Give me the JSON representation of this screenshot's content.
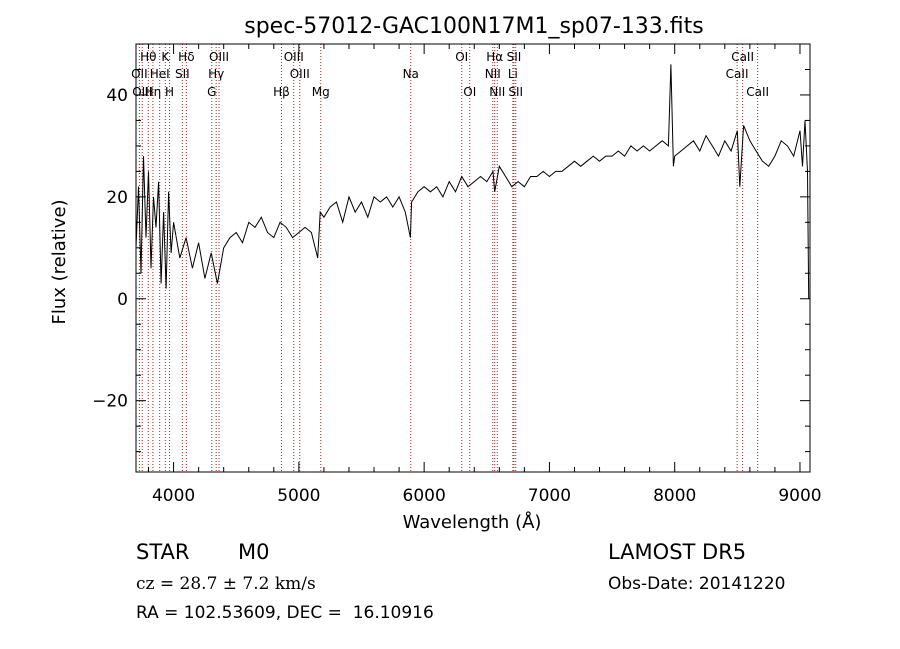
{
  "chart_data": {
    "type": "line",
    "title": "spec-57012-GAC100N17M1_sp07-133.fits",
    "xlabel": "Wavelength (Å)",
    "ylabel": "Flux (relative)",
    "xlim": [
      3700,
      9080
    ],
    "ylim": [
      -34,
      50
    ],
    "x_ticks": [
      4000,
      5000,
      6000,
      7000,
      8000,
      9000
    ],
    "y_ticks": [
      -20,
      0,
      20,
      40
    ],
    "grid": false,
    "series": [
      {
        "x": [
          3700,
          3720,
          3740,
          3760,
          3780,
          3800,
          3820,
          3840,
          3860,
          3880,
          3900,
          3920,
          3940,
          3960,
          3980,
          4000,
          4050,
          4100,
          4150,
          4200,
          4250,
          4300,
          4350,
          4400,
          4450,
          4500,
          4550,
          4600,
          4650,
          4700,
          4750,
          4800,
          4850,
          4900,
          4950,
          5000,
          5050,
          5100,
          5150,
          5170,
          5200,
          5250,
          5300,
          5350,
          5400,
          5450,
          5500,
          5550,
          5600,
          5650,
          5700,
          5750,
          5800,
          5850,
          5890,
          5900,
          5950,
          6000,
          6050,
          6100,
          6150,
          6200,
          6250,
          6300,
          6350,
          6400,
          6450,
          6500,
          6550,
          6563,
          6600,
          6650,
          6700,
          6750,
          6800,
          6850,
          6900,
          6950,
          7000,
          7050,
          7100,
          7150,
          7200,
          7250,
          7300,
          7350,
          7400,
          7450,
          7500,
          7550,
          7600,
          7650,
          7700,
          7750,
          7800,
          7850,
          7900,
          7950,
          7970,
          7990,
          8000,
          8050,
          8100,
          8150,
          8200,
          8250,
          8300,
          8350,
          8400,
          8450,
          8500,
          8520,
          8550,
          8600,
          8650,
          8700,
          8750,
          8800,
          8850,
          8900,
          8950,
          9000,
          9020,
          9040,
          9060,
          9070
        ],
        "y": [
          10,
          22,
          5,
          28,
          12,
          25,
          6,
          20,
          14,
          23,
          3,
          17,
          2,
          21,
          9,
          15,
          8,
          12,
          6,
          11,
          4,
          9,
          3,
          10,
          12,
          13,
          11,
          15,
          14,
          16,
          13,
          12,
          15,
          14,
          12,
          13,
          14,
          13,
          8,
          17,
          16,
          18,
          19,
          15,
          20,
          17,
          19,
          16,
          20,
          19,
          20,
          18,
          20,
          17,
          12,
          19,
          21,
          22,
          21,
          22,
          20,
          23,
          21,
          24,
          22,
          23,
          24,
          23,
          25,
          21,
          26,
          24,
          22,
          23,
          22,
          24,
          24,
          25,
          24,
          25,
          25,
          26,
          27,
          26,
          27,
          28,
          27,
          28,
          28,
          29,
          28,
          30,
          29,
          30,
          29,
          30,
          31,
          30,
          46,
          26,
          28,
          29,
          30,
          31,
          29,
          32,
          30,
          28,
          31,
          29,
          33,
          22,
          34,
          31,
          29,
          27,
          26,
          28,
          31,
          30,
          28,
          33,
          26,
          35,
          25,
          0
        ]
      }
    ],
    "lines": [
      {
        "label": "Hθ",
        "x": 3798,
        "row": 1
      },
      {
        "label": "OII",
        "x": 3727,
        "row": 2
      },
      {
        "label": "OIII",
        "x": 3750,
        "row": 3
      },
      {
        "label": "Hη",
        "x": 3835,
        "row": 3
      },
      {
        "label": "K",
        "x": 3934,
        "row": 1
      },
      {
        "label": "HeI",
        "x": 3889,
        "row": 2
      },
      {
        "label": "H",
        "x": 3968,
        "row": 3
      },
      {
        "label": "SII",
        "x": 4070,
        "row": 2
      },
      {
        "label": "Hδ",
        "x": 4102,
        "row": 1
      },
      {
        "label": "OIII",
        "x": 4363,
        "row": 1
      },
      {
        "label": "Hγ",
        "x": 4340,
        "row": 2
      },
      {
        "label": "G",
        "x": 4305,
        "row": 3
      },
      {
        "label": "Hβ",
        "x": 4861,
        "row": 3
      },
      {
        "label": "OIII",
        "x": 4959,
        "row": 1
      },
      {
        "label": "OIII",
        "x": 5007,
        "row": 2
      },
      {
        "label": "Mg",
        "x": 5175,
        "row": 3
      },
      {
        "label": "Na",
        "x": 5893,
        "row": 2
      },
      {
        "label": "OI",
        "x": 6300,
        "row": 1
      },
      {
        "label": "OI",
        "x": 6364,
        "row": 3
      },
      {
        "label": "Hα",
        "x": 6563,
        "row": 1
      },
      {
        "label": "NII",
        "x": 6548,
        "row": 2
      },
      {
        "label": "NII",
        "x": 6584,
        "row": 3
      },
      {
        "label": "SII",
        "x": 6717,
        "row": 1
      },
      {
        "label": "Li",
        "x": 6708,
        "row": 2
      },
      {
        "label": "SII",
        "x": 6731,
        "row": 3
      },
      {
        "label": "CaII",
        "x": 8498,
        "row": 2
      },
      {
        "label": "CaII",
        "x": 8542,
        "row": 1
      },
      {
        "label": "CaII",
        "x": 8662,
        "row": 3
      }
    ]
  },
  "info": {
    "object_type": "STAR",
    "subclass": "M0",
    "release": "LAMOST DR5",
    "redshift": "cz = 28.7 ± 7.2 km/s",
    "obs_date": "Obs-Date: 20141220",
    "coords": "RA = 102.53609, DEC =  16.10916"
  }
}
